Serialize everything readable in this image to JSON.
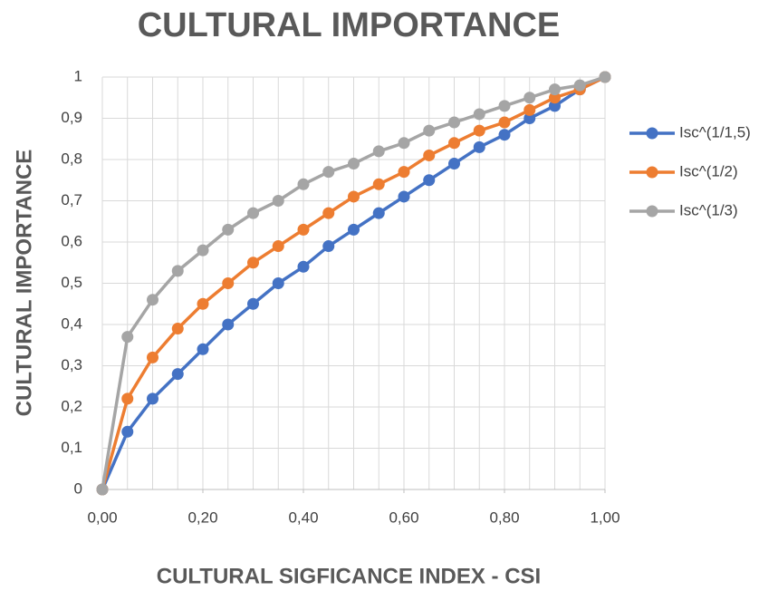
{
  "chart_data": {
    "type": "line",
    "title": "CULTURAL IMPORTANCE",
    "x_label": "CULTURAL SIGFICANCE INDEX - CSI",
    "y_label": "CULTURAL IMPORTANCE",
    "x": [
      0,
      0.05,
      0.1,
      0.15,
      0.2,
      0.25,
      0.3,
      0.35,
      0.4,
      0.45,
      0.5,
      0.55,
      0.6,
      0.65,
      0.7,
      0.75,
      0.8,
      0.85,
      0.9,
      0.95,
      1
    ],
    "series": [
      {
        "name": "Isc^(1/1,5)",
        "color": "#4472c4",
        "values": [
          0,
          0.14,
          0.22,
          0.28,
          0.34,
          0.4,
          0.45,
          0.5,
          0.54,
          0.59,
          0.63,
          0.67,
          0.71,
          0.75,
          0.79,
          0.83,
          0.86,
          0.9,
          0.93,
          0.97,
          1
        ]
      },
      {
        "name": "Isc^(1/2)",
        "color": "#ed7d31",
        "values": [
          0,
          0.22,
          0.32,
          0.39,
          0.45,
          0.5,
          0.55,
          0.59,
          0.63,
          0.67,
          0.71,
          0.74,
          0.77,
          0.81,
          0.84,
          0.87,
          0.89,
          0.92,
          0.95,
          0.97,
          1
        ]
      },
      {
        "name": "Isc^(1/3)",
        "color": "#a5a5a5",
        "values": [
          0,
          0.37,
          0.46,
          0.53,
          0.58,
          0.63,
          0.67,
          0.7,
          0.74,
          0.77,
          0.79,
          0.82,
          0.84,
          0.87,
          0.89,
          0.91,
          0.93,
          0.95,
          0.97,
          0.98,
          1
        ]
      }
    ],
    "xlim": [
      0,
      1
    ],
    "ylim": [
      0,
      1
    ],
    "xticks": [
      {
        "value": 0,
        "label": "0,00"
      },
      {
        "value": 0.2,
        "label": "0,20"
      },
      {
        "value": 0.4,
        "label": "0,40"
      },
      {
        "value": 0.6,
        "label": "0,60"
      },
      {
        "value": 0.8,
        "label": "0,80"
      },
      {
        "value": 1,
        "label": "1,00"
      }
    ],
    "yticks": [
      0,
      {
        "value": 0.1,
        "label": "0,1"
      },
      {
        "value": 0.2,
        "label": "0,2"
      },
      {
        "value": 0.3,
        "label": "0,3"
      },
      {
        "value": 0.4,
        "label": "0,4"
      },
      {
        "value": 0.5,
        "label": "0,5"
      },
      {
        "value": 0.6,
        "label": "0,6"
      },
      {
        "value": 0.7,
        "label": "0,7"
      },
      {
        "value": 0.8,
        "label": "0,8"
      },
      {
        "value": 0.9,
        "label": "0,9"
      },
      1
    ],
    "grid": true,
    "legend": "right"
  }
}
